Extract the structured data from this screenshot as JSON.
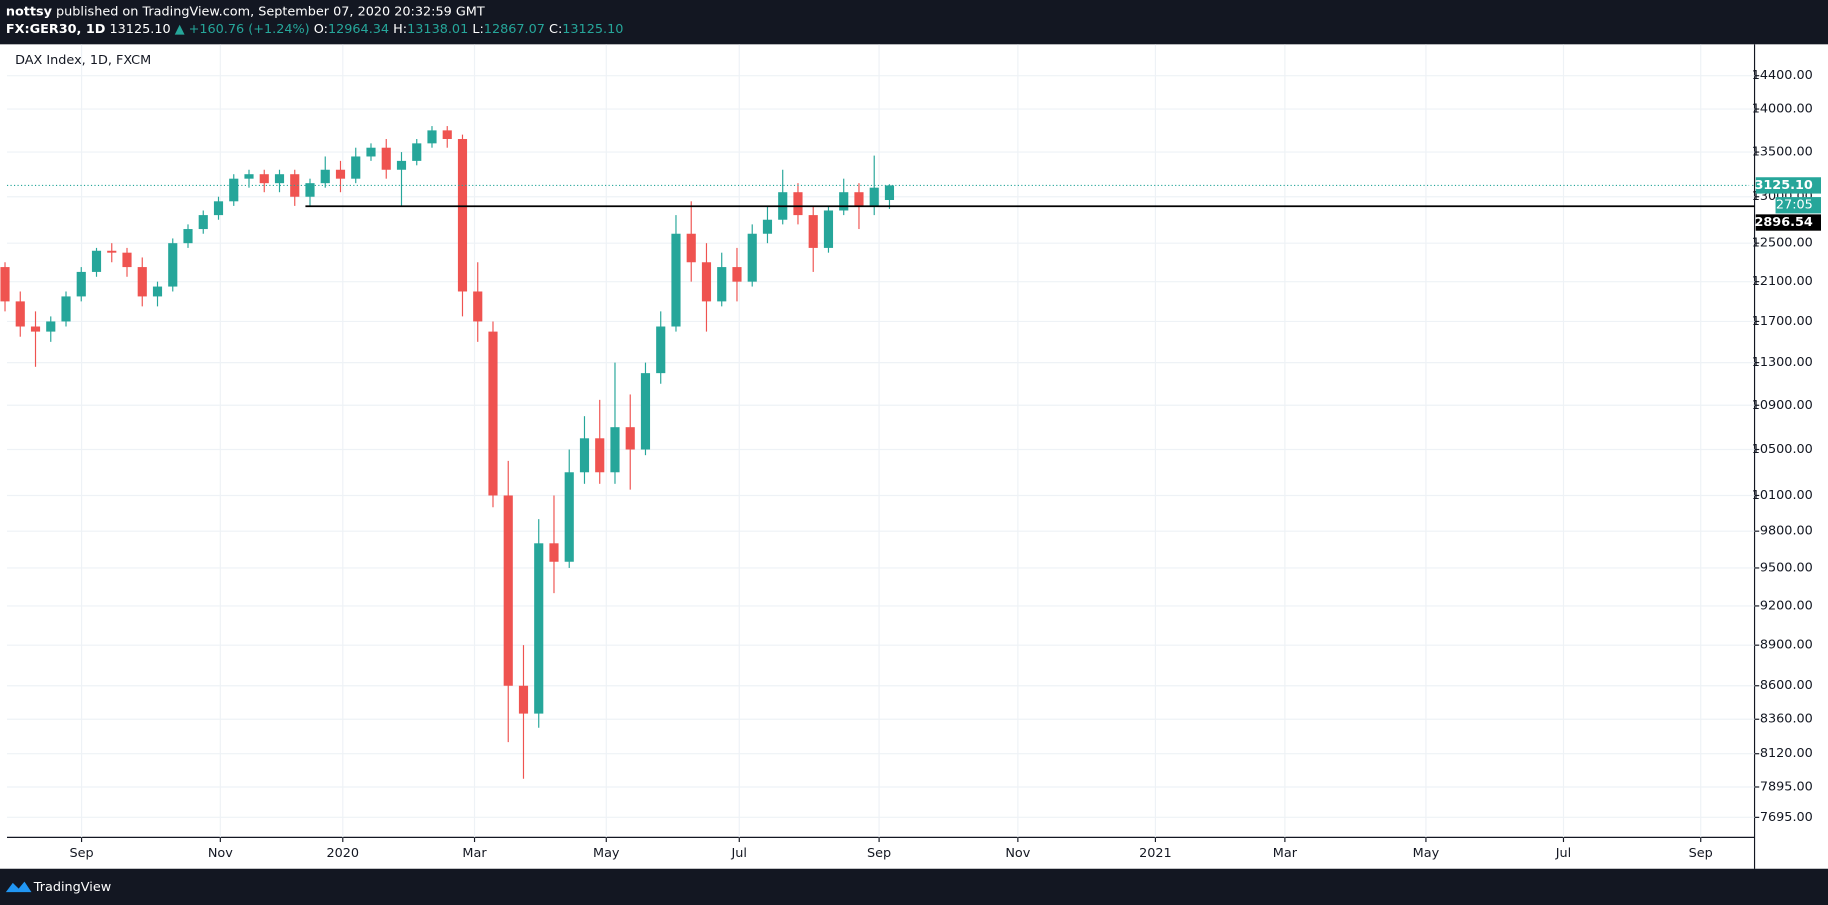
{
  "header": {
    "author": "nottsy",
    "published": "published on TradingView.com, September 07, 2020 20:32:59 GMT",
    "symbol": "FX:GER30, 1D",
    "price": "13125.10",
    "change": "▲ +160.76 (+1.24%)",
    "ohlc": [
      {
        "label": "O:",
        "value": "12964.34"
      },
      {
        "label": "H:",
        "value": "13138.01"
      },
      {
        "label": "L:",
        "value": "12867.07"
      },
      {
        "label": "C:",
        "value": "13125.10"
      }
    ]
  },
  "footer": {
    "brand": "TradingView"
  },
  "chart_data": {
    "type": "candlestick",
    "title": "DAX Index, 1D, FXCM",
    "up_color": "#26a69a",
    "down_color": "#ef5350",
    "grid": true,
    "log_scale": true,
    "open": [
      12250,
      11900,
      11650,
      11600,
      11700,
      11950,
      12200,
      12420,
      12400,
      12250,
      11950,
      12050,
      12500,
      12650,
      12800,
      12950,
      13200,
      13250,
      13150,
      13250,
      13000,
      13150,
      13300,
      13200,
      13450,
      13550,
      13300,
      13400,
      13600,
      13750,
      13650,
      12000,
      11600,
      10100,
      8600,
      8400,
      9700,
      9550,
      10300,
      10600,
      10300,
      10700,
      10500,
      11200,
      11650,
      12600,
      12300,
      11900,
      12250,
      12100,
      12600,
      12750,
      13050,
      12800,
      12450,
      12850,
      13050,
      12900,
      12964.34
    ],
    "high": [
      12300,
      12000,
      11800,
      11750,
      12000,
      12250,
      12450,
      12500,
      12450,
      12350,
      12100,
      12550,
      12700,
      12850,
      13000,
      13250,
      13300,
      13300,
      13300,
      13300,
      13200,
      13450,
      13400,
      13550,
      13600,
      13650,
      13500,
      13650,
      13800,
      13800,
      13700,
      12300,
      11700,
      10400,
      8900,
      9900,
      10100,
      10500,
      10800,
      10950,
      11300,
      11000,
      11300,
      11800,
      12800,
      12950,
      12500,
      12400,
      12450,
      12700,
      12900,
      13300,
      13150,
      12900,
      12900,
      13200,
      13150,
      13460,
      13138.01
    ],
    "low": [
      11800,
      11550,
      11260,
      11500,
      11650,
      11900,
      12150,
      12300,
      12150,
      11850,
      11850,
      12000,
      12450,
      12600,
      12750,
      12900,
      13100,
      13050,
      13050,
      12900,
      12890,
      13100,
      13050,
      13150,
      13400,
      13200,
      12900,
      13350,
      13550,
      13550,
      11750,
      11500,
      10000,
      8200,
      7950,
      8300,
      9300,
      9500,
      10200,
      10200,
      10200,
      10150,
      10450,
      11100,
      11600,
      12100,
      11600,
      11850,
      11900,
      12050,
      12500,
      12700,
      12700,
      12200,
      12400,
      12800,
      12650,
      12800,
      12867.07
    ],
    "close": [
      11900,
      11650,
      11600,
      11700,
      11950,
      12200,
      12420,
      12400,
      12250,
      11950,
      12050,
      12500,
      12650,
      12800,
      12950,
      13200,
      13250,
      13150,
      13250,
      13000,
      13150,
      13300,
      13200,
      13450,
      13550,
      13300,
      13400,
      13600,
      13750,
      13650,
      12000,
      11700,
      10100,
      8600,
      8400,
      9700,
      9550,
      10300,
      10600,
      10300,
      10700,
      10500,
      11200,
      11650,
      12600,
      12300,
      11900,
      12250,
      12100,
      12600,
      12750,
      13050,
      12800,
      12450,
      12850,
      13050,
      12900,
      13100,
      13125.1
    ],
    "xlim": [
      0.13,
      114.73
    ],
    "xticks": [
      {
        "value": 5.02,
        "label": "Sep"
      },
      {
        "value": 14.12,
        "label": "Nov"
      },
      {
        "value": 22.15,
        "label": "2020"
      },
      {
        "value": 30.79,
        "label": "Mar"
      },
      {
        "value": 39.43,
        "label": "May"
      },
      {
        "value": 48.15,
        "label": "Jul"
      },
      {
        "value": 57.32,
        "label": "Sep"
      },
      {
        "value": 66.42,
        "label": "Nov"
      },
      {
        "value": 75.44,
        "label": "2021"
      },
      {
        "value": 83.93,
        "label": "Mar"
      },
      {
        "value": 93.18,
        "label": "May"
      },
      {
        "value": 102.2,
        "label": "Jul"
      },
      {
        "value": 111.2,
        "label": "Sep"
      }
    ],
    "ylim": [
      7566,
      14787
    ],
    "yticks": [
      {
        "value": 14400,
        "label": "14400.00"
      },
      {
        "value": 14000,
        "label": "14000.00"
      },
      {
        "value": 13500,
        "label": "13500.00"
      },
      {
        "value": 13000,
        "label": "13000.00"
      },
      {
        "value": 12500,
        "label": "12500.00"
      },
      {
        "value": 12100,
        "label": "12100.00"
      },
      {
        "value": 11700,
        "label": "11700.00"
      },
      {
        "value": 11300,
        "label": "11300.00"
      },
      {
        "value": 10900,
        "label": "10900.00"
      },
      {
        "value": 10500,
        "label": "10500.00"
      },
      {
        "value": 10100,
        "label": "10100.00"
      },
      {
        "value": 9800,
        "label": "9800.00"
      },
      {
        "value": 9500,
        "label": "9500.00"
      },
      {
        "value": 9200,
        "label": "9200.00"
      },
      {
        "value": 8900,
        "label": "8900.00"
      },
      {
        "value": 8600,
        "label": "8600.00"
      },
      {
        "value": 8360,
        "label": "8360.00"
      },
      {
        "value": 8120,
        "label": "8120.00"
      },
      {
        "value": 7895,
        "label": "7895.00"
      },
      {
        "value": 7695,
        "label": "7695.00"
      }
    ],
    "last_price": {
      "value": 13125.1,
      "label": "13125.10",
      "countdown": "27:05"
    },
    "hline": {
      "value": 12896.54,
      "label": "12896.54",
      "x_start": 19.7
    }
  }
}
